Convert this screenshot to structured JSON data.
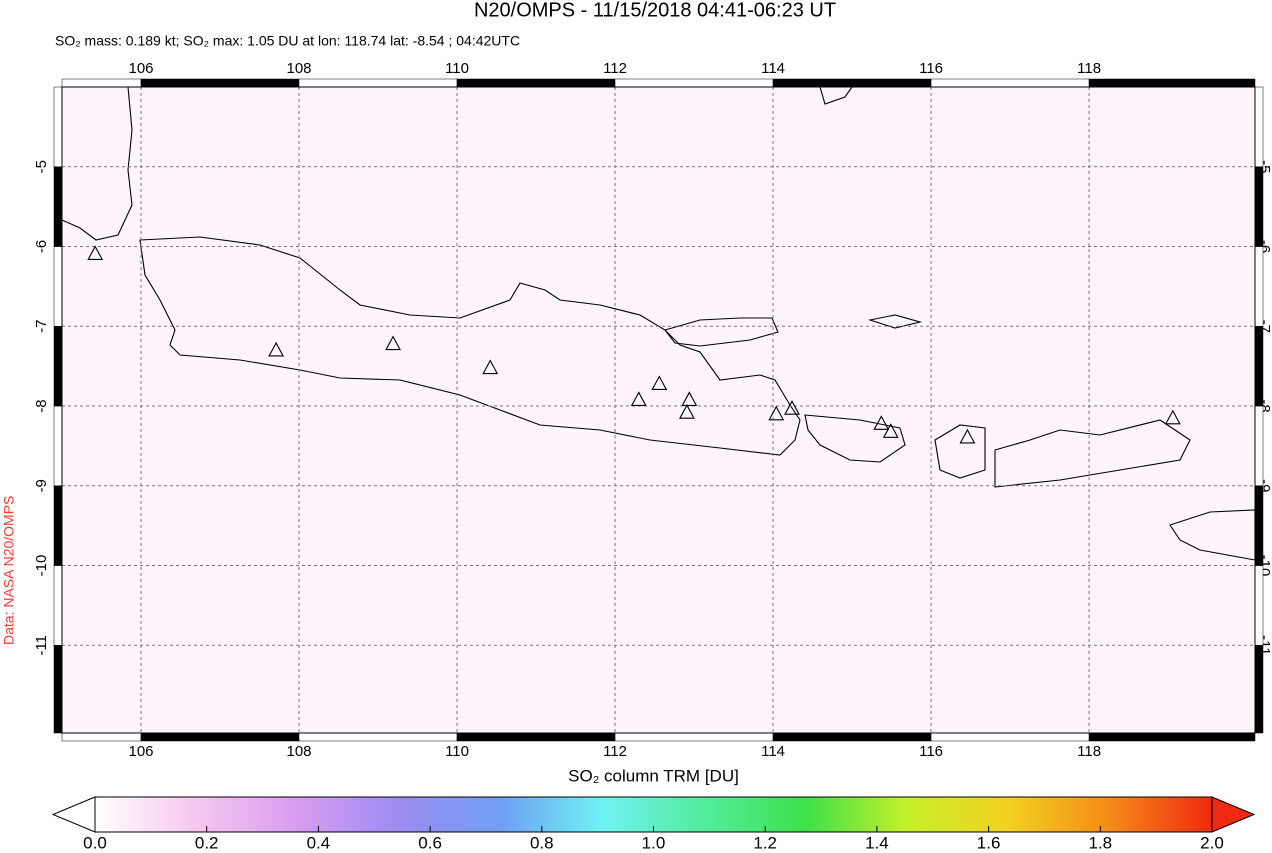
{
  "chart_data": {
    "type": "map",
    "title": "N20/OMPS - 11/15/2018 04:41-06:23 UT",
    "subtitle": "SO₂ mass: 0.189 kt; SO₂ max: 1.05 DU at lon: 118.74 lat: -8.54 ; 04:42UTC",
    "side_label": "Data: NASA N20/OMPS",
    "side_label_color": "#ff3b30",
    "xlim": [
      105,
      120.1
    ],
    "ylim": [
      -12.1,
      -4
    ],
    "xticks": [
      106,
      108,
      110,
      112,
      114,
      116,
      118
    ],
    "yticks": [
      -5,
      -6,
      -7,
      -8,
      -9,
      -10,
      -11
    ],
    "grid": true,
    "volcano_lon": [
      107.71,
      109.19,
      110.42,
      112.3,
      112.56,
      112.94,
      112.91,
      114.04,
      114.24,
      115.37,
      115.49,
      116.46,
      119.06,
      105.42
    ],
    "volcano_lat": [
      -7.31,
      -7.23,
      -7.53,
      -7.93,
      -7.73,
      -7.93,
      -8.09,
      -8.11,
      -8.04,
      -8.23,
      -8.33,
      -8.4,
      -8.16,
      -6.1
    ],
    "colorbar": {
      "label": "SO₂ column TRM [DU]",
      "lim": [
        0,
        2
      ],
      "ticks": [
        {
          "value": 0,
          "label": "0.0"
        },
        {
          "value": 0.2,
          "label": "0.2"
        },
        {
          "value": 0.4,
          "label": "0.4"
        },
        {
          "value": 0.6,
          "label": "0.6"
        },
        {
          "value": 0.8,
          "label": "0.8"
        },
        {
          "value": 1,
          "label": "1.0"
        },
        {
          "value": 1.2,
          "label": "1.2"
        },
        {
          "value": 1.4,
          "label": "1.4"
        },
        {
          "value": 1.6,
          "label": "1.6"
        },
        {
          "value": 1.8,
          "label": "1.8"
        },
        {
          "value": 2,
          "label": "2.0"
        }
      ],
      "colors": [
        "#ffffff",
        "#f6c6ee",
        "#d79cf0",
        "#9d8cf2",
        "#6fa0f4",
        "#6ff2f4",
        "#52ec9c",
        "#3ee04a",
        "#c6f02a",
        "#f4d020",
        "#f48a18",
        "#f02a10"
      ]
    }
  }
}
